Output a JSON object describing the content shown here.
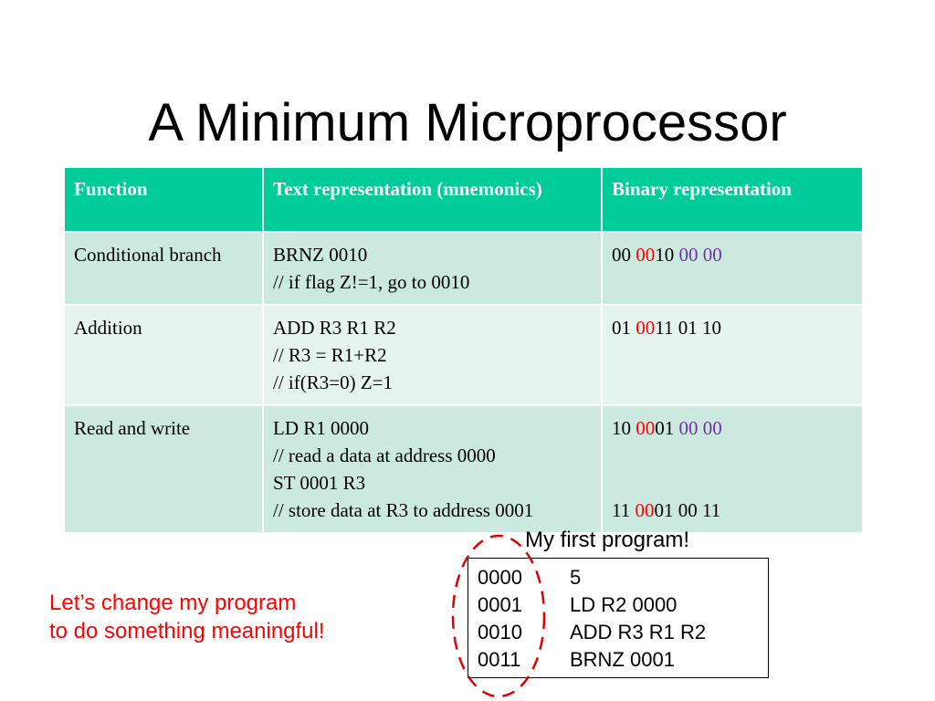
{
  "slide": {
    "title": "A Minimum Microprocessor"
  },
  "table": {
    "headers": [
      "Function",
      "Text representation (mnemonics)",
      "Binary representation"
    ],
    "rows": [
      {
        "function": "Conditional branch",
        "text_lines": [
          "BRNZ 0010",
          "// if flag Z!=1, go to 0010"
        ],
        "binary_lines": [
          [
            {
              "t": "00 ",
              "c": "black"
            },
            {
              "t": "00",
              "c": "red"
            },
            {
              "t": "10 ",
              "c": "black"
            },
            {
              "t": "00 00",
              "c": "purple"
            }
          ]
        ]
      },
      {
        "function": "Addition",
        "text_lines": [
          "ADD R3 R1 R2",
          "// R3 = R1+R2",
          "// if(R3=0) Z=1"
        ],
        "binary_lines": [
          [
            {
              "t": "01 ",
              "c": "black"
            },
            {
              "t": "00",
              "c": "red"
            },
            {
              "t": "11 01 10",
              "c": "black"
            }
          ]
        ]
      },
      {
        "function": "Read and write",
        "text_lines": [
          "LD R1 0000",
          "// read a data at address 0000",
          "ST 0001 R3",
          "// store data at R3 to address 0001"
        ],
        "binary_lines": [
          [
            {
              "t": "10 ",
              "c": "black"
            },
            {
              "t": "00",
              "c": "red"
            },
            {
              "t": "01 ",
              "c": "black"
            },
            {
              "t": "00 00",
              "c": "purple"
            }
          ],
          [
            {
              "t": "11 ",
              "c": "black"
            },
            {
              "t": "00",
              "c": "red"
            },
            {
              "t": "01 00 11",
              "c": "black"
            }
          ]
        ]
      }
    ]
  },
  "program": {
    "caption": "My first program!",
    "lines": [
      {
        "addr": "0000",
        "instr": "5"
      },
      {
        "addr": "0001",
        "instr": "LD R2 0000"
      },
      {
        "addr": "0010",
        "instr": "ADD R3 R1 R2"
      },
      {
        "addr": "0011",
        "instr": "BRNZ 0001"
      }
    ]
  },
  "note": {
    "line1": "Let’s change my program",
    "line2": "to do something meaningful!"
  },
  "colors": {
    "header_bg": "#00cc99",
    "row_dark": "#cbe9df",
    "row_light": "#e6f4ef",
    "highlight_red": "#ff0000",
    "highlight_purple": "#7030a0",
    "oval": "#e00000"
  }
}
